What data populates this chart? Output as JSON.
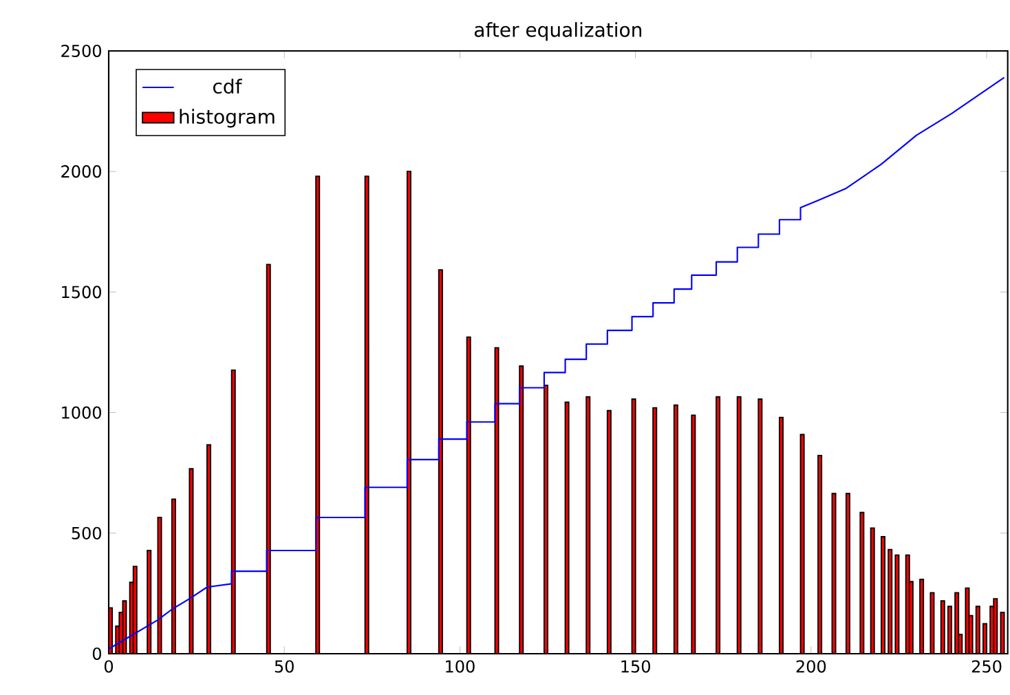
{
  "chart_data": {
    "type": "histogram",
    "title": "after equalization",
    "legend": "top left",
    "xlim": [
      0,
      256
    ],
    "ylim": [
      0,
      2500
    ],
    "xticks": [
      0,
      50,
      100,
      150,
      200,
      250
    ],
    "yticks": [
      0,
      500,
      1000,
      1500,
      2000,
      2500
    ],
    "bins": [
      0,
      1,
      2,
      3,
      4,
      5,
      6,
      7,
      8,
      9,
      10,
      11,
      12,
      13,
      14,
      15,
      16,
      17,
      18,
      19,
      20,
      21,
      22,
      23,
      24,
      25,
      26,
      27,
      28,
      29,
      30,
      31,
      32,
      33,
      34,
      35,
      36,
      37,
      38,
      39,
      40,
      41,
      42,
      43,
      44,
      45,
      46,
      47,
      48,
      49,
      50,
      51,
      52,
      53,
      54,
      55,
      56,
      57,
      58,
      59,
      60,
      61,
      62,
      63,
      64,
      65,
      66,
      67,
      68,
      69,
      70,
      71,
      72,
      73,
      74,
      75,
      76,
      77,
      78,
      79,
      80,
      81,
      82,
      83,
      84,
      85,
      86,
      87,
      88,
      89,
      90,
      91,
      92,
      93,
      94,
      95,
      96,
      97,
      98,
      99,
      100,
      101,
      102,
      103,
      104,
      105,
      106,
      107,
      108,
      109,
      110,
      111,
      112,
      113,
      114,
      115,
      116,
      117,
      118,
      119,
      120,
      121,
      122,
      123,
      124,
      125,
      126,
      127,
      128,
      129,
      130,
      131,
      132,
      133,
      134,
      135,
      136,
      137,
      138,
      139,
      140,
      141,
      142,
      143,
      144,
      145,
      146,
      147,
      148,
      149,
      150,
      151,
      152,
      153,
      154,
      155,
      156,
      157,
      158,
      159,
      160,
      161,
      162,
      163,
      164,
      165,
      166,
      167,
      168,
      169,
      170,
      171,
      172,
      173,
      174,
      175,
      176,
      177,
      178,
      179,
      180,
      181,
      182,
      183,
      184,
      185,
      186,
      187,
      188,
      189,
      190,
      191,
      192,
      193,
      194,
      195,
      196,
      197,
      198,
      199,
      200,
      201,
      202,
      203,
      204,
      205,
      206,
      207,
      208,
      209,
      210,
      211,
      212,
      213,
      214,
      215,
      216,
      217,
      218,
      219,
      220,
      221,
      222,
      223,
      224,
      225,
      226,
      227,
      228,
      229,
      230,
      231,
      232,
      233,
      234,
      235,
      236,
      237,
      238,
      239,
      240,
      241,
      242,
      243,
      244,
      245,
      246,
      247,
      248,
      249,
      250,
      251,
      252,
      253,
      254,
      255,
      256
    ],
    "series": [
      {
        "name": "histogram",
        "color": "#ff0000",
        "values": [
          190,
          0,
          114,
          171,
          219,
          0,
          296,
          362,
          0,
          0,
          0,
          428,
          0,
          0,
          565,
          0,
          0,
          0,
          641,
          0,
          0,
          0,
          0,
          767,
          0,
          0,
          0,
          0,
          866,
          0,
          0,
          0,
          0,
          0,
          0,
          1176,
          0,
          0,
          0,
          0,
          0,
          0,
          0,
          0,
          0,
          1614,
          0,
          0,
          0,
          0,
          0,
          0,
          0,
          0,
          0,
          0,
          0,
          0,
          0,
          1980,
          0,
          0,
          0,
          0,
          0,
          0,
          0,
          0,
          0,
          0,
          0,
          0,
          0,
          1980,
          0,
          0,
          0,
          0,
          0,
          0,
          0,
          0,
          0,
          0,
          0,
          2000,
          0,
          0,
          0,
          0,
          0,
          0,
          0,
          0,
          1592,
          0,
          0,
          0,
          0,
          0,
          0,
          0,
          1313,
          0,
          0,
          0,
          0,
          0,
          0,
          0,
          1269,
          0,
          0,
          0,
          0,
          0,
          0,
          1193,
          0,
          0,
          0,
          0,
          0,
          0,
          1113,
          0,
          0,
          0,
          0,
          0,
          1043,
          0,
          0,
          0,
          0,
          0,
          1065,
          0,
          0,
          0,
          0,
          0,
          1008,
          0,
          0,
          0,
          0,
          0,
          0,
          1056,
          0,
          0,
          0,
          0,
          0,
          1020,
          0,
          0,
          0,
          0,
          0,
          1031,
          0,
          0,
          0,
          0,
          989,
          0,
          0,
          0,
          0,
          0,
          0,
          1065,
          0,
          0,
          0,
          0,
          0,
          1065,
          0,
          0,
          0,
          0,
          0,
          1056,
          0,
          0,
          0,
          0,
          0,
          980,
          0,
          0,
          0,
          0,
          0,
          909,
          0,
          0,
          0,
          0,
          822,
          0,
          0,
          0,
          664,
          0,
          0,
          0,
          664,
          0,
          0,
          0,
          586,
          0,
          0,
          521,
          0,
          0,
          485,
          0,
          432,
          0,
          409,
          0,
          0,
          409,
          299,
          0,
          0,
          308,
          0,
          0,
          253,
          0,
          0,
          219,
          0,
          196,
          0,
          253,
          80,
          0,
          272,
          158,
          0,
          196,
          0,
          124,
          0,
          196,
          228,
          0,
          171,
          0
        ]
      },
      {
        "type": "line",
        "name": "cdf",
        "color": "#0000ff",
        "x": [
          0,
          14,
          18,
          23,
          28,
          35,
          35,
          45,
          45,
          59,
          59,
          73,
          73,
          85,
          85,
          94,
          94,
          102,
          102,
          110,
          110,
          117,
          117,
          124,
          124,
          130,
          130,
          136,
          136,
          142,
          142,
          149,
          149,
          155,
          155,
          161,
          161,
          166,
          166,
          173,
          173,
          179,
          179,
          185,
          185,
          191,
          191,
          197,
          197,
          202,
          210,
          220,
          230,
          240,
          250,
          255
        ],
        "values": [
          20,
          140,
          184,
          228,
          276,
          290,
          342,
          342,
          428,
          428,
          565,
          565,
          690,
          690,
          805,
          805,
          890,
          890,
          961,
          961,
          1037,
          1037,
          1103,
          1103,
          1166,
          1166,
          1221,
          1221,
          1284,
          1284,
          1341,
          1341,
          1398,
          1398,
          1455,
          1455,
          1512,
          1512,
          1570,
          1570,
          1625,
          1625,
          1685,
          1685,
          1740,
          1740,
          1800,
          1800,
          1850,
          1880,
          1930,
          2030,
          2150,
          2240,
          2340,
          2390
        ]
      }
    ]
  }
}
